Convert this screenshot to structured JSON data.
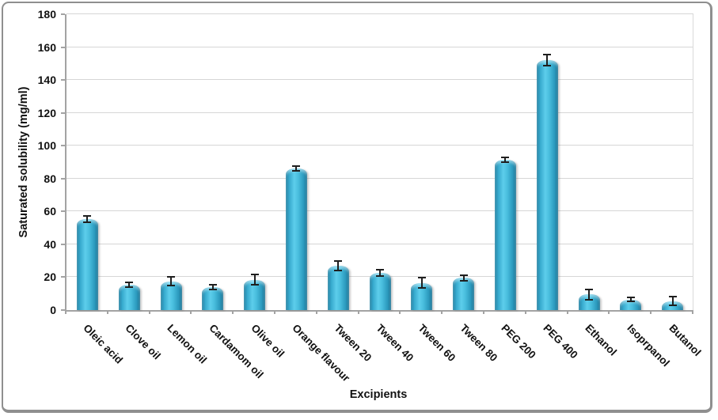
{
  "chart_data": {
    "type": "bar",
    "title": "",
    "xlabel": "Excipients",
    "ylabel": "Saturated solubility (mg/ml)",
    "ylim": [
      0,
      180
    ],
    "ytick_step": 20,
    "yticks": [
      0,
      20,
      40,
      60,
      80,
      100,
      120,
      140,
      160,
      180
    ],
    "grid": true,
    "legend": "none",
    "categories": [
      "Oleic acid",
      "Clove oil",
      "Lemon oil",
      "Cardamom oil",
      "Olive oil",
      "Orange flavour",
      "Tween 20",
      "Tween 40",
      "Tween 60",
      "Tween 80",
      "PEG 200",
      "PEG 400",
      "Ethanol",
      "Isoprpanol",
      "Butanol"
    ],
    "values": [
      55.5,
      15.5,
      17.5,
      14,
      18.5,
      86,
      27,
      22.5,
      16.5,
      19.5,
      91.5,
      152,
      9.5,
      6.5,
      5.5
    ],
    "errors": [
      2,
      1.5,
      2.5,
      1.5,
      3,
      1.5,
      3,
      2,
      3,
      1.5,
      1.5,
      3.5,
      3,
      1,
      2.5
    ],
    "bar_color_center": "#5dcdeb",
    "bar_color_edge": "#1c7c9e",
    "error_bar_color": "#1f1f1f",
    "gridline_color": "#d6d6d6",
    "axis_color": "#a3a3a3",
    "text_color": "#111111",
    "frame_border_color": "#8f8f8f",
    "background_color": "#ffffff"
  }
}
